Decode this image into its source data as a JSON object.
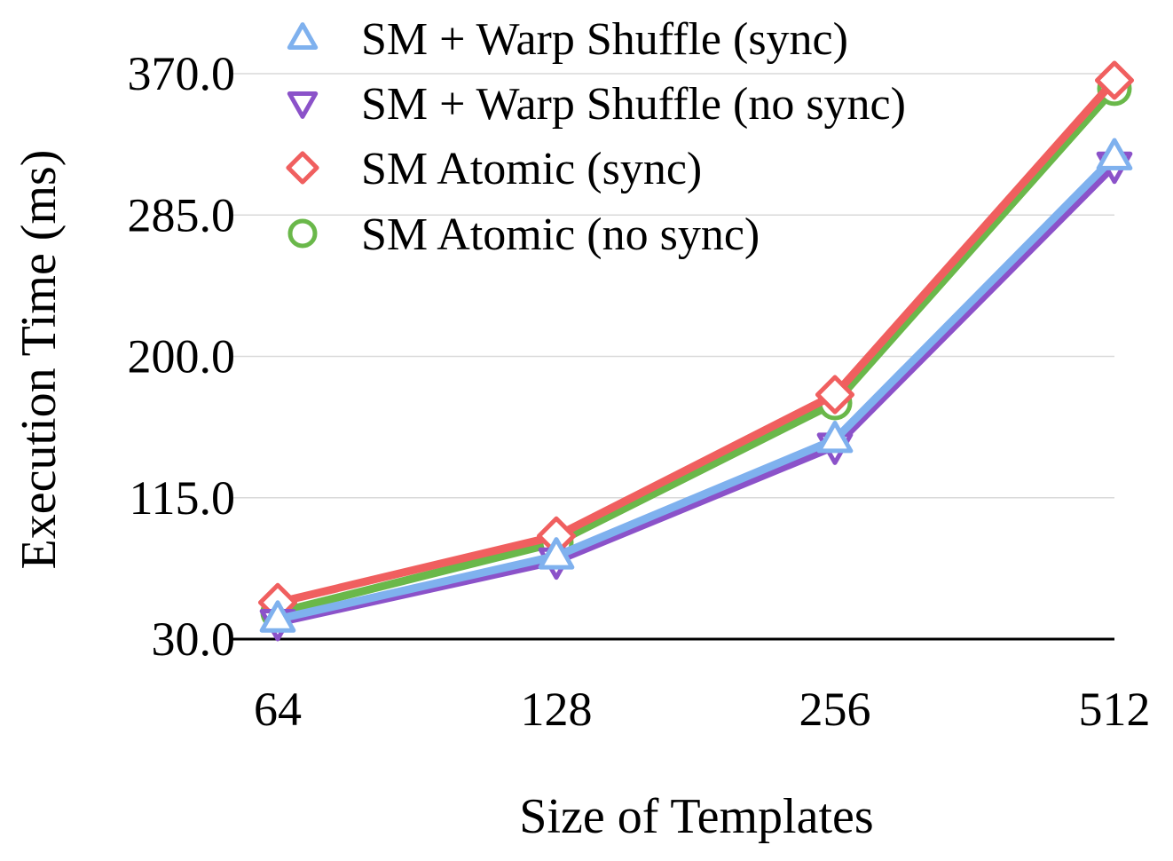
{
  "chart_data": {
    "type": "line",
    "title": "",
    "xlabel": "Size of Templates",
    "ylabel": "Execution Time (ms)",
    "categories": [
      "64",
      "128",
      "256",
      "512"
    ],
    "ylim": [
      30,
      370
    ],
    "yticks": [
      "30.0",
      "115.0",
      "200.0",
      "285.0",
      "370.0"
    ],
    "ytick_values": [
      30,
      115,
      200,
      285,
      370
    ],
    "grid": true,
    "legend_position": "top-left",
    "series": [
      {
        "name": "SM + Warp Shuffle (sync)",
        "values": [
          42,
          80,
          150,
          320
        ],
        "color": "#7fb1ee",
        "marker": "triangle-up",
        "marker_icon": "triangle-up-icon"
      },
      {
        "name": "SM + Warp Shuffle (no sync)",
        "values": [
          40,
          77,
          146,
          315
        ],
        "color": "#8b52c9",
        "marker": "triangle-down",
        "marker_icon": "triangle-down-icon"
      },
      {
        "name": "SM Atomic (sync)",
        "values": [
          52,
          92,
          177,
          366
        ],
        "color": "#f05f5f",
        "marker": "diamond",
        "marker_icon": "diamond-icon"
      },
      {
        "name": "SM Atomic (no sync)",
        "values": [
          46,
          88,
          172,
          361
        ],
        "color": "#6ab84a",
        "marker": "circle",
        "marker_icon": "circle-icon"
      }
    ],
    "draw_order": [
      3,
      2,
      1,
      0
    ]
  }
}
